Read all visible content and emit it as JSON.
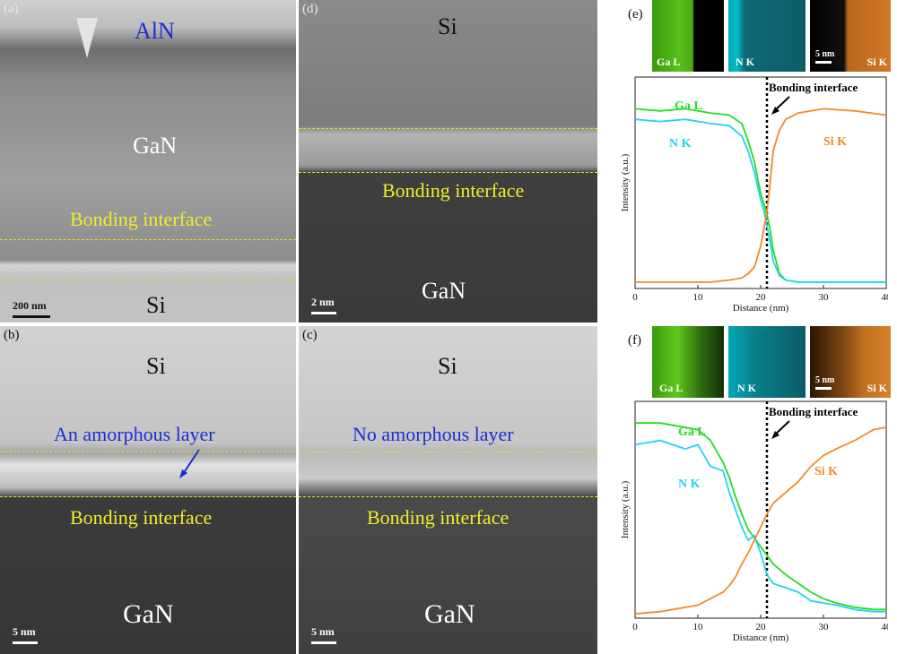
{
  "panels": {
    "a": {
      "label": "(a)",
      "layer_top": "AlN",
      "layer_mid": "GaN",
      "interface": "Bonding interface",
      "layer_bottom": "Si",
      "scale": "200 nm"
    },
    "b": {
      "label": "(b)",
      "layer_top": "Si",
      "note": "An amorphous layer",
      "interface": "Bonding interface",
      "layer_bottom": "GaN",
      "scale": "5 nm"
    },
    "c": {
      "label": "(c)",
      "layer_top": "Si",
      "note": "No amorphous layer",
      "interface": "Bonding interface",
      "layer_bottom": "GaN",
      "scale": "5 nm"
    },
    "d": {
      "label": "(d)",
      "layer_top": "Si",
      "interface": "Bonding interface",
      "layer_bottom": "GaN",
      "scale": "2 nm"
    },
    "e": {
      "label": "(e)",
      "maps": [
        "Ga L",
        "N K",
        "Si K"
      ],
      "map_scale": "5 nm",
      "annotation": "Bonding interface"
    },
    "f": {
      "label": "(f)",
      "maps": [
        "Ga L",
        "N K",
        "Si K"
      ],
      "map_scale": "5 nm",
      "annotation": "Bonding interface"
    }
  },
  "colors": {
    "ga": "#22dd22",
    "n": "#22d4ee",
    "si": "#f08a2a",
    "interface_text": "#f2ec2a",
    "note_text": "#1a2fd6"
  },
  "chart_data": [
    {
      "type": "line",
      "panel": "e",
      "xlabel": "Distance (nm)",
      "ylabel": "Intensity (a.u.)",
      "xlim": [
        0,
        40
      ],
      "xticks": [
        "0",
        "10",
        "20",
        "30",
        "40"
      ],
      "interface_x": 21,
      "series": [
        {
          "name": "Ga L",
          "x": [
            0,
            4,
            8,
            12,
            15,
            17,
            18,
            19,
            20,
            20.5,
            21,
            21.5,
            22,
            23,
            24,
            26,
            30,
            35,
            40
          ],
          "values": [
            0.85,
            0.84,
            0.85,
            0.83,
            0.82,
            0.78,
            0.7,
            0.6,
            0.45,
            0.4,
            0.35,
            0.28,
            0.18,
            0.07,
            0.04,
            0.03,
            0.03,
            0.03,
            0.03
          ]
        },
        {
          "name": "N K",
          "x": [
            0,
            4,
            8,
            12,
            15,
            17,
            18,
            19,
            20,
            20.5,
            21,
            21.5,
            22,
            23,
            24,
            26,
            30,
            35,
            40
          ],
          "values": [
            0.8,
            0.79,
            0.8,
            0.78,
            0.77,
            0.72,
            0.65,
            0.55,
            0.42,
            0.37,
            0.3,
            0.22,
            0.13,
            0.06,
            0.04,
            0.03,
            0.03,
            0.03,
            0.03
          ]
        },
        {
          "name": "Si K",
          "x": [
            0,
            4,
            8,
            12,
            15,
            17,
            18,
            19,
            20,
            20.5,
            21,
            21.5,
            22,
            23,
            24,
            26,
            30,
            35,
            40
          ],
          "values": [
            0.03,
            0.03,
            0.03,
            0.03,
            0.04,
            0.05,
            0.07,
            0.1,
            0.2,
            0.28,
            0.36,
            0.5,
            0.65,
            0.75,
            0.8,
            0.83,
            0.85,
            0.84,
            0.82
          ]
        }
      ]
    },
    {
      "type": "line",
      "panel": "f",
      "xlabel": "Distance (nm)",
      "ylabel": "Intensity (a.u.)",
      "xlim": [
        0,
        40
      ],
      "xticks": [
        "0",
        "10",
        "20",
        "30",
        "40"
      ],
      "interface_x": 21,
      "series": [
        {
          "name": "Ga L",
          "x": [
            0,
            4,
            8,
            10,
            12,
            14,
            15,
            16,
            17,
            18,
            19,
            20,
            21,
            22,
            24,
            26,
            28,
            30,
            32,
            35,
            38,
            40
          ],
          "values": [
            0.9,
            0.9,
            0.88,
            0.87,
            0.82,
            0.72,
            0.65,
            0.56,
            0.48,
            0.41,
            0.37,
            0.33,
            0.29,
            0.25,
            0.2,
            0.16,
            0.12,
            0.09,
            0.07,
            0.05,
            0.04,
            0.04
          ]
        },
        {
          "name": "N K",
          "x": [
            0,
            4,
            8,
            10,
            12,
            14,
            15,
            16,
            17,
            18,
            19,
            20,
            21,
            22,
            24,
            26,
            28,
            30,
            32,
            35,
            38,
            40
          ],
          "values": [
            0.8,
            0.82,
            0.78,
            0.8,
            0.7,
            0.68,
            0.58,
            0.5,
            0.42,
            0.36,
            0.38,
            0.3,
            0.2,
            0.16,
            0.14,
            0.12,
            0.08,
            0.07,
            0.06,
            0.04,
            0.03,
            0.03
          ]
        },
        {
          "name": "Si K",
          "x": [
            0,
            4,
            8,
            10,
            12,
            14,
            15,
            16,
            17,
            18,
            19,
            20,
            21,
            22,
            24,
            26,
            28,
            30,
            32,
            35,
            38,
            40
          ],
          "values": [
            0.02,
            0.03,
            0.05,
            0.06,
            0.09,
            0.12,
            0.15,
            0.19,
            0.25,
            0.3,
            0.36,
            0.42,
            0.48,
            0.53,
            0.58,
            0.63,
            0.7,
            0.75,
            0.78,
            0.82,
            0.87,
            0.88
          ]
        }
      ]
    }
  ]
}
